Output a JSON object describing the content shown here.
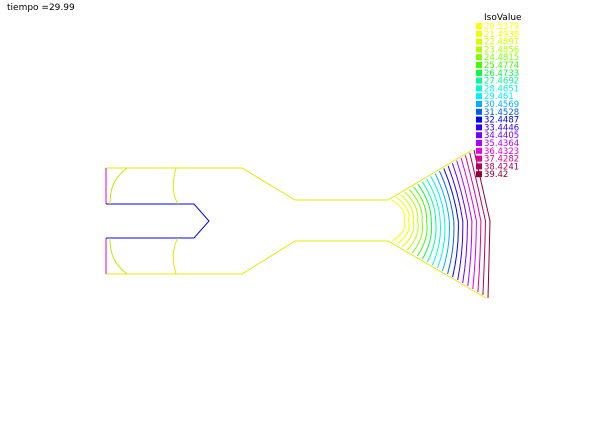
{
  "title": "tiempo =29.99",
  "chart_data": {
    "type": "contour",
    "title": "tiempo =29.99",
    "legend_title": "IsoValue",
    "legend_placement": "top-right",
    "grid": false,
    "isovalues": [
      {
        "value": "20.5379",
        "color": "#ffff00"
      },
      {
        "value": "21.4938",
        "color": "#f0ff00"
      },
      {
        "value": "22.4897",
        "color": "#d8ff00"
      },
      {
        "value": "23.4856",
        "color": "#b0ff00"
      },
      {
        "value": "24.4815",
        "color": "#80ff00"
      },
      {
        "value": "25.4774",
        "color": "#40ff00"
      },
      {
        "value": "26.4733",
        "color": "#00ff40"
      },
      {
        "value": "27.4692",
        "color": "#00ff90"
      },
      {
        "value": "28.4651",
        "color": "#00ffd0"
      },
      {
        "value": "29.461",
        "color": "#00f0ff"
      },
      {
        "value": "30.4569",
        "color": "#00b0ff"
      },
      {
        "value": "31.4528",
        "color": "#0060ff"
      },
      {
        "value": "32.4487",
        "color": "#0000ff"
      },
      {
        "value": "33.4446",
        "color": "#3000ff"
      },
      {
        "value": "34.4405",
        "color": "#7000ff"
      },
      {
        "value": "35.4364",
        "color": "#b000ff"
      },
      {
        "value": "36.4323",
        "color": "#e000e0"
      },
      {
        "value": "37.4282",
        "color": "#e00090"
      },
      {
        "value": "38.4241",
        "color": "#b00060"
      },
      {
        "value": "39.42",
        "color": "#900030"
      }
    ]
  }
}
